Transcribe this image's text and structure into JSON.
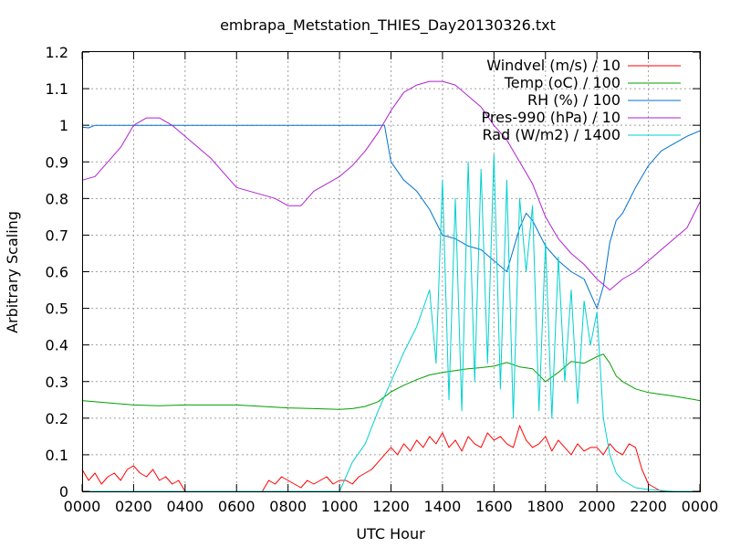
{
  "chart_data": {
    "type": "line",
    "title": "embrapa_Metstation_THIES_Day20130326.txt",
    "xlabel": "UTC Hour",
    "ylabel": "Arbitrary Scaling",
    "xlim": [
      0,
      24
    ],
    "ylim": [
      0,
      1.2
    ],
    "grid": true,
    "legend_position": "top-right",
    "x_ticks": [
      0,
      2,
      4,
      6,
      8,
      10,
      12,
      14,
      16,
      18,
      20,
      22,
      24
    ],
    "x_tick_labels": [
      "0000",
      "0200",
      "0400",
      "0600",
      "0800",
      "1000",
      "1200",
      "1400",
      "1600",
      "1800",
      "2000",
      "2200",
      "0000"
    ],
    "y_ticks": [
      0,
      0.1,
      0.2,
      0.3,
      0.4,
      0.5,
      0.6,
      0.7,
      0.8,
      0.9,
      1.0,
      1.1,
      1.2
    ],
    "y_tick_labels": [
      "0",
      "0.1",
      "0.2",
      "0.3",
      "0.4",
      "0.5",
      "0.6",
      "0.7",
      "0.8",
      "0.9",
      "1",
      "1.1",
      "1.2"
    ],
    "series": [
      {
        "name": "Windvel (m/s) / 10",
        "color": "#ff0000",
        "x": [
          0,
          0.25,
          0.5,
          0.75,
          1,
          1.25,
          1.5,
          1.75,
          2,
          2.25,
          2.5,
          2.75,
          3,
          3.25,
          3.5,
          3.75,
          4,
          4.5,
          5,
          5.5,
          6,
          6.5,
          7,
          7.25,
          7.5,
          7.75,
          8,
          8.25,
          8.5,
          8.75,
          9,
          9.25,
          9.5,
          9.75,
          10,
          10.25,
          10.5,
          10.75,
          11,
          11.25,
          11.5,
          11.75,
          12,
          12.25,
          12.5,
          12.75,
          13,
          13.25,
          13.5,
          13.75,
          14,
          14.25,
          14.5,
          14.75,
          15,
          15.25,
          15.5,
          15.75,
          16,
          16.25,
          16.5,
          16.75,
          17,
          17.25,
          17.5,
          17.75,
          18,
          18.25,
          18.5,
          18.75,
          19,
          19.25,
          19.5,
          19.75,
          20,
          20.25,
          20.5,
          20.75,
          21,
          21.25,
          21.5,
          21.75,
          22,
          22.5,
          23,
          23.5,
          24
        ],
        "y": [
          0.06,
          0.03,
          0.05,
          0.02,
          0.04,
          0.05,
          0.03,
          0.06,
          0.07,
          0.05,
          0.04,
          0.06,
          0.03,
          0.04,
          0.02,
          0.03,
          0,
          0,
          0,
          0,
          0,
          0,
          0,
          0.03,
          0.02,
          0.04,
          0.03,
          0.02,
          0.01,
          0.03,
          0.02,
          0.03,
          0.04,
          0.02,
          0.03,
          0.03,
          0.02,
          0.04,
          0.05,
          0.06,
          0.08,
          0.1,
          0.12,
          0.1,
          0.13,
          0.11,
          0.14,
          0.12,
          0.15,
          0.13,
          0.16,
          0.12,
          0.14,
          0.11,
          0.15,
          0.13,
          0.12,
          0.16,
          0.14,
          0.15,
          0.13,
          0.12,
          0.18,
          0.14,
          0.12,
          0.13,
          0.15,
          0.11,
          0.14,
          0.12,
          0.1,
          0.13,
          0.11,
          0.12,
          0.12,
          0.1,
          0.13,
          0.11,
          0.1,
          0.13,
          0.12,
          0.06,
          0.02,
          0,
          0,
          0,
          0
        ]
      },
      {
        "name": "Temp (oC) / 100",
        "color": "#00a000",
        "x": [
          0,
          1,
          2,
          3,
          4,
          5,
          6,
          7,
          8,
          9,
          10,
          10.5,
          11,
          11.5,
          12,
          12.5,
          13,
          13.5,
          14,
          14.5,
          15,
          15.5,
          16,
          16.5,
          17,
          17.5,
          18,
          18.5,
          19,
          19.5,
          20,
          20.25,
          20.5,
          20.75,
          21,
          21.5,
          22,
          23,
          24
        ],
        "y": [
          0.248,
          0.242,
          0.236,
          0.234,
          0.236,
          0.236,
          0.236,
          0.232,
          0.228,
          0.226,
          0.224,
          0.226,
          0.232,
          0.245,
          0.272,
          0.29,
          0.305,
          0.318,
          0.325,
          0.33,
          0.335,
          0.338,
          0.342,
          0.352,
          0.34,
          0.335,
          0.3,
          0.325,
          0.355,
          0.35,
          0.368,
          0.375,
          0.35,
          0.315,
          0.3,
          0.28,
          0.27,
          0.26,
          0.248
        ]
      },
      {
        "name": "RH (%) / 100",
        "color": "#0070d0",
        "x": [
          0,
          0.25,
          0.5,
          1,
          2,
          3,
          4,
          5,
          6,
          7,
          8,
          9,
          10,
          11,
          11.5,
          11.75,
          12,
          12.5,
          13,
          13.5,
          14,
          14.5,
          15,
          15.5,
          16,
          16.5,
          17,
          17.25,
          17.5,
          18,
          18.5,
          19,
          19.5,
          20,
          20.25,
          20.5,
          20.75,
          21,
          21.5,
          22,
          22.5,
          23,
          23.5,
          24
        ],
        "y": [
          0.995,
          0.993,
          1.0,
          1.0,
          1.0,
          1.0,
          1.0,
          1.0,
          1.0,
          1.0,
          1.0,
          1.0,
          1.0,
          1.0,
          1.0,
          1.0,
          0.9,
          0.85,
          0.82,
          0.77,
          0.7,
          0.69,
          0.67,
          0.66,
          0.63,
          0.6,
          0.72,
          0.76,
          0.74,
          0.67,
          0.63,
          0.6,
          0.58,
          0.5,
          0.56,
          0.68,
          0.74,
          0.76,
          0.83,
          0.89,
          0.93,
          0.95,
          0.97,
          0.985
        ]
      },
      {
        "name": "Pres-990 (hPa) / 10",
        "color": "#b020d0",
        "x": [
          0,
          0.5,
          1,
          1.5,
          2,
          2.5,
          3,
          3.5,
          4,
          4.5,
          5,
          5.5,
          6,
          6.5,
          7,
          7.5,
          8,
          8.5,
          9,
          9.5,
          10,
          10.5,
          11,
          11.5,
          12,
          12.5,
          13,
          13.5,
          14,
          14.5,
          15,
          15.5,
          16,
          16.5,
          17,
          17.5,
          18,
          18.5,
          19,
          19.5,
          20,
          20.5,
          21,
          21.5,
          22,
          22.5,
          23,
          23.5,
          24
        ],
        "y": [
          0.85,
          0.86,
          0.9,
          0.94,
          1.0,
          1.02,
          1.02,
          1.0,
          0.97,
          0.94,
          0.91,
          0.87,
          0.83,
          0.82,
          0.81,
          0.8,
          0.78,
          0.78,
          0.82,
          0.84,
          0.86,
          0.89,
          0.93,
          0.98,
          1.04,
          1.09,
          1.11,
          1.12,
          1.12,
          1.11,
          1.08,
          1.05,
          1.0,
          0.96,
          0.9,
          0.84,
          0.75,
          0.69,
          0.65,
          0.62,
          0.58,
          0.55,
          0.58,
          0.6,
          0.63,
          0.66,
          0.69,
          0.72,
          0.79
        ]
      },
      {
        "name": "Rad (W/m2) / 1400",
        "color": "#00d0d0",
        "x": [
          0,
          1,
          2,
          3,
          4,
          5,
          6,
          7,
          8,
          9,
          10,
          10.5,
          11,
          11.5,
          12,
          12.5,
          13,
          13.25,
          13.5,
          13.75,
          14,
          14.25,
          14.5,
          14.75,
          15,
          15.25,
          15.5,
          15.75,
          16,
          16.25,
          16.5,
          16.75,
          17,
          17.25,
          17.5,
          17.75,
          18,
          18.25,
          18.5,
          18.75,
          19,
          19.25,
          19.5,
          19.75,
          20,
          20.25,
          20.5,
          20.75,
          21,
          21.5,
          22,
          23,
          24
        ],
        "y": [
          0,
          0,
          0,
          0,
          0,
          0,
          0,
          0,
          0,
          0,
          0,
          0.08,
          0.13,
          0.22,
          0.3,
          0.38,
          0.45,
          0.5,
          0.55,
          0.35,
          0.85,
          0.25,
          0.8,
          0.22,
          0.9,
          0.3,
          0.88,
          0.35,
          0.92,
          0.28,
          0.85,
          0.2,
          0.8,
          0.6,
          0.78,
          0.22,
          0.68,
          0.2,
          0.64,
          0.3,
          0.55,
          0.24,
          0.52,
          0.4,
          0.49,
          0.2,
          0.1,
          0.05,
          0.03,
          0.01,
          0.005,
          0,
          0
        ]
      }
    ]
  }
}
